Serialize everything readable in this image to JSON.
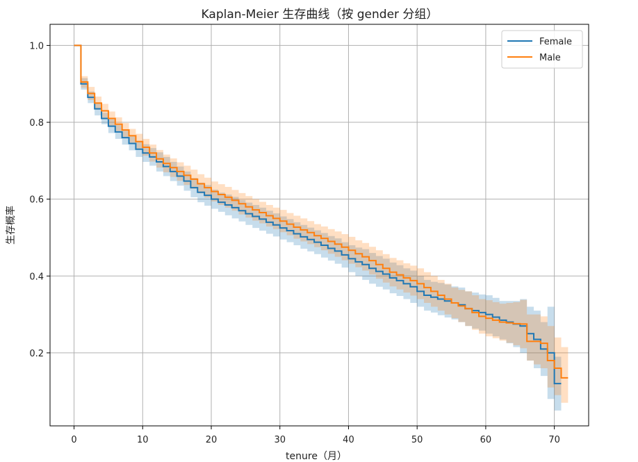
{
  "chart_data": {
    "type": "line",
    "title": "Kaplan-Meier 生存曲线（按 gender 分组）",
    "xlabel": "tenure（月）",
    "ylabel": "生存概率",
    "xlim": [
      -3.5,
      75
    ],
    "ylim": [
      0.01,
      1.055
    ],
    "xticks": [
      0,
      10,
      20,
      30,
      40,
      50,
      60,
      70
    ],
    "yticks": [
      0.2,
      0.4,
      0.6,
      0.8,
      1.0
    ],
    "xtick_labels": [
      "0",
      "10",
      "20",
      "30",
      "40",
      "50",
      "60",
      "70"
    ],
    "ytick_labels": [
      "0.2",
      "0.4",
      "0.6",
      "0.8",
      "1.0"
    ],
    "grid": true,
    "legend_position": "top-right",
    "series": [
      {
        "name": "Female",
        "color": "#1f77b4",
        "step": "post",
        "x": [
          0,
          1,
          2,
          3,
          4,
          5,
          6,
          7,
          8,
          9,
          10,
          11,
          12,
          13,
          14,
          15,
          16,
          17,
          18,
          19,
          20,
          21,
          22,
          23,
          24,
          25,
          26,
          27,
          28,
          29,
          30,
          31,
          32,
          33,
          34,
          35,
          36,
          37,
          38,
          39,
          40,
          41,
          42,
          43,
          44,
          45,
          46,
          47,
          48,
          49,
          50,
          51,
          52,
          53,
          54,
          55,
          56,
          57,
          58,
          59,
          60,
          61,
          62,
          63,
          64,
          65,
          66,
          67,
          68,
          69,
          70,
          71
        ],
        "y": [
          1.0,
          0.9,
          0.865,
          0.835,
          0.81,
          0.79,
          0.775,
          0.76,
          0.745,
          0.73,
          0.72,
          0.71,
          0.697,
          0.685,
          0.672,
          0.66,
          0.647,
          0.63,
          0.618,
          0.61,
          0.6,
          0.592,
          0.585,
          0.578,
          0.57,
          0.562,
          0.555,
          0.548,
          0.54,
          0.533,
          0.525,
          0.518,
          0.51,
          0.502,
          0.495,
          0.488,
          0.48,
          0.472,
          0.465,
          0.455,
          0.445,
          0.437,
          0.43,
          0.42,
          0.412,
          0.405,
          0.395,
          0.388,
          0.38,
          0.372,
          0.36,
          0.35,
          0.345,
          0.34,
          0.335,
          0.33,
          0.325,
          0.315,
          0.31,
          0.305,
          0.3,
          0.293,
          0.285,
          0.28,
          0.275,
          0.27,
          0.25,
          0.235,
          0.21,
          0.2,
          0.12,
          0.12
        ],
        "ci_lower": [
          1.0,
          0.885,
          0.85,
          0.818,
          0.795,
          0.772,
          0.757,
          0.742,
          0.727,
          0.71,
          0.697,
          0.687,
          0.672,
          0.66,
          0.647,
          0.635,
          0.622,
          0.605,
          0.592,
          0.583,
          0.575,
          0.567,
          0.558,
          0.55,
          0.542,
          0.533,
          0.525,
          0.518,
          0.51,
          0.503,
          0.495,
          0.488,
          0.48,
          0.471,
          0.464,
          0.457,
          0.448,
          0.44,
          0.432,
          0.422,
          0.41,
          0.4,
          0.39,
          0.38,
          0.372,
          0.365,
          0.355,
          0.348,
          0.34,
          0.33,
          0.32,
          0.31,
          0.305,
          0.298,
          0.292,
          0.287,
          0.28,
          0.27,
          0.263,
          0.258,
          0.25,
          0.243,
          0.235,
          0.225,
          0.215,
          0.2,
          0.18,
          0.16,
          0.14,
          0.08,
          0.05,
          0.05
        ],
        "ci_upper": [
          1.0,
          0.915,
          0.88,
          0.852,
          0.825,
          0.808,
          0.793,
          0.778,
          0.763,
          0.75,
          0.743,
          0.733,
          0.722,
          0.71,
          0.697,
          0.685,
          0.672,
          0.655,
          0.643,
          0.637,
          0.625,
          0.617,
          0.612,
          0.606,
          0.598,
          0.591,
          0.585,
          0.578,
          0.57,
          0.563,
          0.555,
          0.548,
          0.54,
          0.533,
          0.526,
          0.519,
          0.512,
          0.504,
          0.498,
          0.488,
          0.48,
          0.474,
          0.47,
          0.46,
          0.452,
          0.445,
          0.435,
          0.428,
          0.42,
          0.414,
          0.4,
          0.39,
          0.385,
          0.382,
          0.378,
          0.373,
          0.37,
          0.36,
          0.357,
          0.352,
          0.35,
          0.343,
          0.335,
          0.335,
          0.335,
          0.34,
          0.32,
          0.31,
          0.28,
          0.32,
          0.19,
          0.19
        ]
      },
      {
        "name": "Male",
        "color": "#ff7f0e",
        "step": "post",
        "x": [
          0,
          1,
          2,
          3,
          4,
          5,
          6,
          7,
          8,
          9,
          10,
          11,
          12,
          13,
          14,
          15,
          16,
          17,
          18,
          19,
          20,
          21,
          22,
          23,
          24,
          25,
          26,
          27,
          28,
          29,
          30,
          31,
          32,
          33,
          34,
          35,
          36,
          37,
          38,
          39,
          40,
          41,
          42,
          43,
          44,
          45,
          46,
          47,
          48,
          49,
          50,
          51,
          52,
          53,
          54,
          55,
          56,
          57,
          58,
          59,
          60,
          61,
          62,
          63,
          64,
          65,
          66,
          67,
          68,
          69,
          70,
          71,
          72
        ],
        "y": [
          1.0,
          0.905,
          0.875,
          0.85,
          0.83,
          0.81,
          0.795,
          0.78,
          0.765,
          0.75,
          0.735,
          0.72,
          0.705,
          0.693,
          0.682,
          0.672,
          0.662,
          0.652,
          0.64,
          0.63,
          0.62,
          0.612,
          0.605,
          0.597,
          0.588,
          0.58,
          0.572,
          0.565,
          0.557,
          0.55,
          0.543,
          0.535,
          0.527,
          0.52,
          0.513,
          0.505,
          0.498,
          0.49,
          0.483,
          0.475,
          0.467,
          0.458,
          0.45,
          0.44,
          0.43,
          0.42,
          0.41,
          0.403,
          0.395,
          0.388,
          0.38,
          0.37,
          0.36,
          0.35,
          0.34,
          0.33,
          0.322,
          0.315,
          0.305,
          0.295,
          0.29,
          0.285,
          0.28,
          0.278,
          0.276,
          0.275,
          0.23,
          0.23,
          0.225,
          0.18,
          0.16,
          0.135,
          0.135
        ],
        "ci_lower": [
          1.0,
          0.89,
          0.858,
          0.833,
          0.812,
          0.792,
          0.777,
          0.762,
          0.747,
          0.73,
          0.713,
          0.698,
          0.682,
          0.67,
          0.658,
          0.648,
          0.637,
          0.627,
          0.615,
          0.604,
          0.594,
          0.585,
          0.578,
          0.57,
          0.56,
          0.552,
          0.544,
          0.537,
          0.529,
          0.522,
          0.514,
          0.506,
          0.497,
          0.49,
          0.483,
          0.475,
          0.467,
          0.458,
          0.45,
          0.441,
          0.432,
          0.423,
          0.414,
          0.404,
          0.393,
          0.383,
          0.373,
          0.365,
          0.357,
          0.349,
          0.34,
          0.33,
          0.32,
          0.31,
          0.3,
          0.29,
          0.28,
          0.27,
          0.26,
          0.25,
          0.243,
          0.238,
          0.232,
          0.226,
          0.22,
          0.212,
          0.18,
          0.17,
          0.16,
          0.11,
          0.09,
          0.07,
          0.07
        ],
        "ci_upper": [
          1.0,
          0.92,
          0.892,
          0.867,
          0.848,
          0.828,
          0.813,
          0.798,
          0.783,
          0.77,
          0.757,
          0.742,
          0.728,
          0.716,
          0.706,
          0.696,
          0.687,
          0.677,
          0.665,
          0.656,
          0.646,
          0.639,
          0.632,
          0.624,
          0.616,
          0.608,
          0.6,
          0.593,
          0.585,
          0.578,
          0.572,
          0.564,
          0.557,
          0.55,
          0.543,
          0.535,
          0.529,
          0.522,
          0.516,
          0.509,
          0.502,
          0.493,
          0.486,
          0.476,
          0.467,
          0.457,
          0.447,
          0.441,
          0.433,
          0.427,
          0.42,
          0.41,
          0.4,
          0.39,
          0.38,
          0.37,
          0.364,
          0.36,
          0.35,
          0.34,
          0.337,
          0.332,
          0.328,
          0.33,
          0.332,
          0.338,
          0.3,
          0.3,
          0.295,
          0.27,
          0.24,
          0.215,
          0.215
        ]
      }
    ]
  }
}
